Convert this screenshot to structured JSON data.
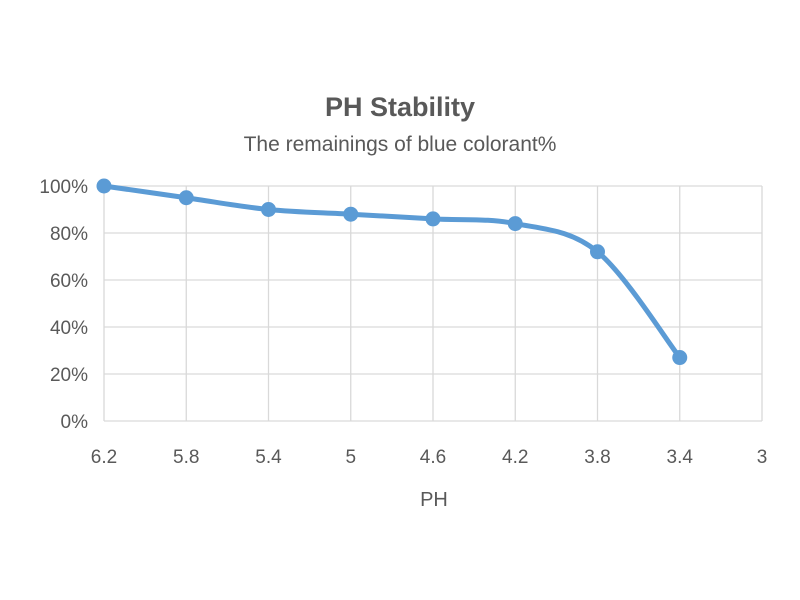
{
  "chart_data": {
    "type": "line",
    "title": "PH Stability",
    "subtitle": "The remainings of blue colorant%",
    "xlabel": "PH",
    "ylabel": "",
    "x_ticks": [
      "6.2",
      "5.8",
      "5.4",
      "5",
      "4.6",
      "4.2",
      "3.8",
      "3.4",
      "3"
    ],
    "y_ticks": [
      "0%",
      "20%",
      "40%",
      "60%",
      "80%",
      "100%"
    ],
    "ylim": [
      0,
      100
    ],
    "x_reversed": true,
    "smoothed": true,
    "grid": true,
    "legend": "none",
    "series": [
      {
        "color": "#5b9bd5",
        "x": [
          6.2,
          5.8,
          5.4,
          5.0,
          4.6,
          4.2,
          3.8,
          3.4
        ],
        "values": [
          100,
          95,
          90,
          88,
          86,
          84,
          72,
          27
        ]
      }
    ]
  },
  "colors": {
    "text": "#595959",
    "grid": "#d9d9d9",
    "series": "#5b9bd5"
  }
}
